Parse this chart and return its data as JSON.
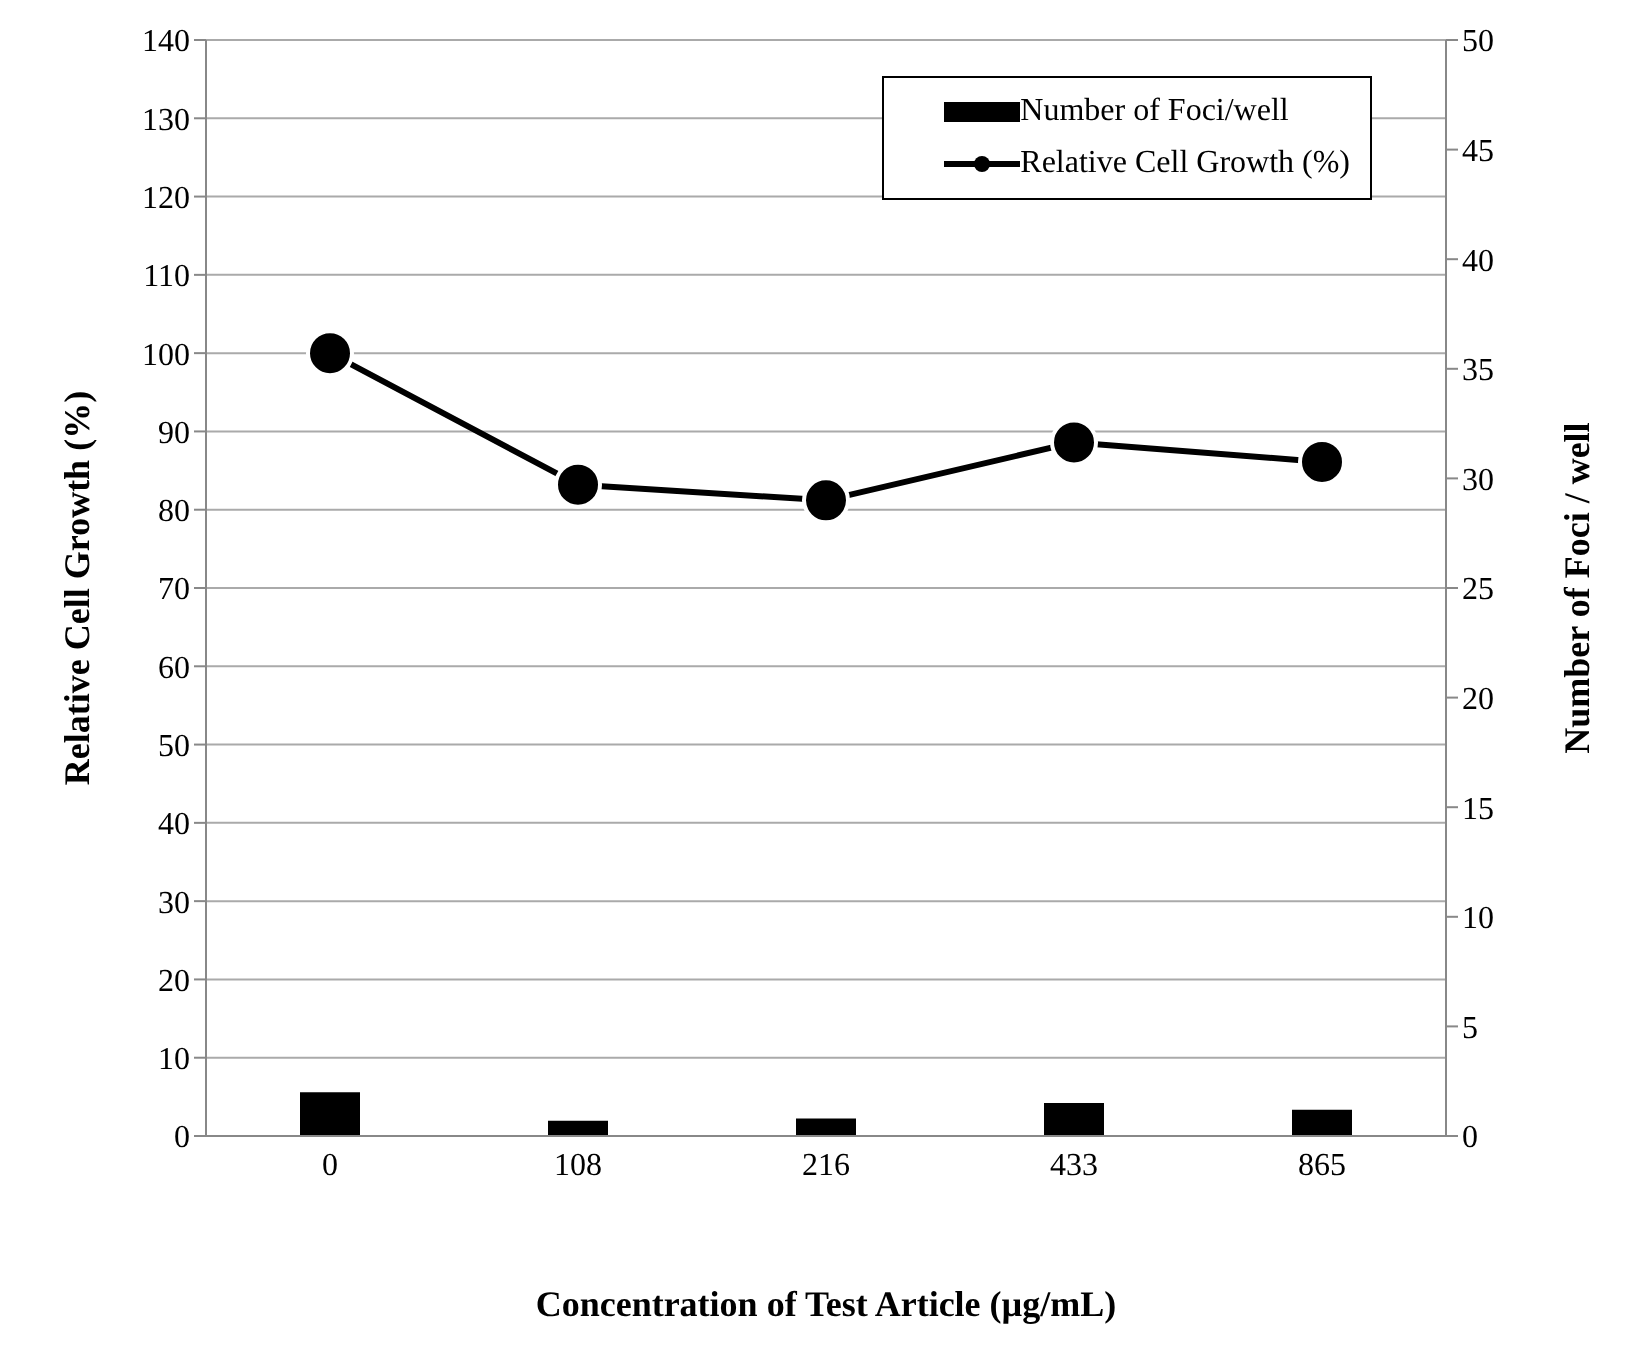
{
  "chart_data": {
    "type": "bar",
    "xlabel": "Concentration of Test Article (µg/mL)",
    "ylabel": "Relative Cell Growth (%)",
    "y2label": "Number of Foci / well",
    "categories": [
      "0",
      "108",
      "216",
      "433",
      "865"
    ],
    "series": [
      {
        "name": "Number of Foci/well",
        "color": "#000000",
        "axis": "y2",
        "values": [
          2.0,
          0.7,
          0.8,
          1.5,
          1.2
        ]
      },
      {
        "name": "Relative Cell Growth (%)",
        "type": "line",
        "color": "#000000",
        "marker": "circle",
        "values": [
          100,
          83.2,
          81.2,
          88.6,
          86.1
        ]
      }
    ],
    "ylim": [
      0,
      140
    ],
    "yticks": [
      0,
      10,
      20,
      30,
      40,
      50,
      60,
      70,
      80,
      90,
      100,
      110,
      120,
      130,
      140
    ],
    "y2lim": [
      0,
      50
    ],
    "y2ticks": [
      0,
      5,
      10,
      15,
      20,
      25,
      30,
      35,
      40,
      45,
      50
    ],
    "grid": "y",
    "legend": "top right"
  }
}
